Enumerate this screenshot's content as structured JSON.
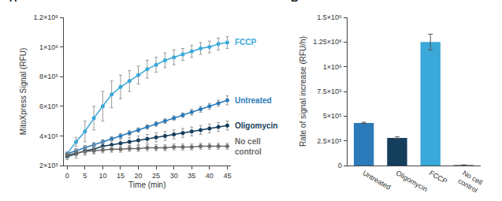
{
  "chart_data": [
    {
      "type": "line",
      "title": "A",
      "x_label": "Time (min)",
      "y_label": "MitoXpress Signal (RFU)",
      "x": [
        0,
        2.5,
        5,
        7.5,
        10,
        12.5,
        15,
        17.5,
        20,
        22.5,
        25,
        27.5,
        30,
        32.5,
        35,
        37.5,
        40,
        42.5,
        45
      ],
      "xlim": [
        -1,
        46
      ],
      "xticks": [
        0,
        5,
        10,
        15,
        20,
        25,
        30,
        35,
        40,
        45
      ],
      "ylim": [
        200000,
        1200000
      ],
      "yticks": [
        {
          "value": 200000,
          "label": "2×10⁵"
        },
        {
          "value": 400000,
          "label": "4×10⁵"
        },
        {
          "value": 600000,
          "label": "6×10⁵"
        },
        {
          "value": 800000,
          "label": "8×10⁵"
        },
        {
          "value": 1000000,
          "label": "1×10⁶"
        },
        {
          "value": 1200000,
          "label": "1.2×10⁶"
        }
      ],
      "grid": false,
      "marker": "circle",
      "series": [
        {
          "name": "FCCP",
          "color": "#3aa8d8",
          "values": [
            280000,
            360000,
            430000,
            520000,
            600000,
            680000,
            730000,
            770000,
            810000,
            850000,
            880000,
            910000,
            930000,
            950000,
            970000,
            990000,
            1000000,
            1020000,
            1030000
          ],
          "errors": [
            10000,
            30000,
            70000,
            80000,
            100000,
            90000,
            80000,
            70000,
            60000,
            60000,
            50000,
            50000,
            50000,
            40000,
            40000,
            40000,
            40000,
            40000,
            40000
          ]
        },
        {
          "name": "Untreated",
          "color": "#2b7bba",
          "values": [
            280000,
            300000,
            320000,
            340000,
            360000,
            380000,
            400000,
            420000,
            440000,
            460000,
            480000,
            500000,
            520000,
            540000,
            560000,
            580000,
            600000,
            620000,
            640000
          ],
          "errors": [
            10000,
            15000,
            15000,
            15000,
            15000,
            15000,
            15000,
            15000,
            15000,
            15000,
            15000,
            15000,
            15000,
            15000,
            20000,
            20000,
            20000,
            20000,
            30000
          ]
        },
        {
          "name": "Oligomycin",
          "color": "#153e5c",
          "values": [
            260000,
            280000,
            300000,
            310000,
            330000,
            340000,
            350000,
            360000,
            370000,
            380000,
            390000,
            400000,
            410000,
            420000,
            430000,
            440000,
            450000,
            460000,
            470000
          ],
          "errors": [
            20000,
            30000,
            30000,
            30000,
            30000,
            30000,
            30000,
            30000,
            30000,
            30000,
            30000,
            30000,
            30000,
            30000,
            30000,
            30000,
            30000,
            30000,
            30000
          ]
        },
        {
          "name": "No cell control",
          "color": "#6b6b6b",
          "values": [
            270000,
            285000,
            295000,
            300000,
            305000,
            310000,
            310000,
            315000,
            315000,
            320000,
            320000,
            320000,
            325000,
            325000,
            325000,
            330000,
            330000,
            330000,
            330000
          ],
          "errors": [
            20000,
            20000,
            20000,
            20000,
            20000,
            20000,
            20000,
            20000,
            20000,
            20000,
            20000,
            20000,
            20000,
            20000,
            20000,
            20000,
            20000,
            20000,
            20000
          ]
        }
      ]
    },
    {
      "type": "bar",
      "title": "B",
      "y_label": "Rate of signal increase (RFU/h)",
      "categories": [
        "Untreated",
        "Oligomycin",
        "FCCP",
        "No cell control"
      ],
      "values": [
        430000,
        280000,
        1250000,
        5000
      ],
      "errors": [
        8000,
        10000,
        80000,
        2000
      ],
      "colors": [
        "#2b7bba",
        "#153e5c",
        "#3aa8d8",
        "#6b6b6b"
      ],
      "ylim": [
        0,
        1500000
      ],
      "yticks": [
        0,
        {
          "value": 250000,
          "label": "2.5×10⁵"
        },
        {
          "value": 500000,
          "label": "5×10⁵"
        },
        {
          "value": 750000,
          "label": "7.5×10⁵"
        },
        {
          "value": 1000000,
          "label": "1×10⁶"
        },
        {
          "value": 1250000,
          "label": "1.25×10⁶"
        },
        {
          "value": 1500000,
          "label": "1.5×10⁶"
        }
      ],
      "grid": false
    }
  ]
}
